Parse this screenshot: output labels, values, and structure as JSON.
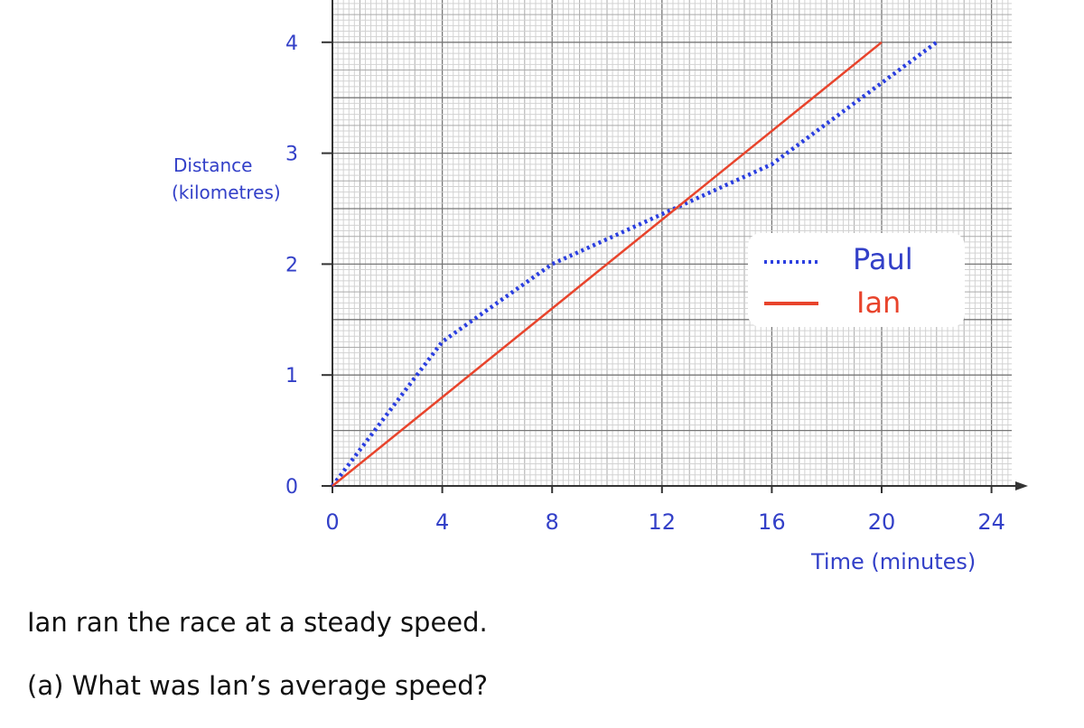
{
  "chart_data": {
    "type": "line",
    "xlabel": "Time (minutes)",
    "ylabel_line1": "Distance",
    "ylabel_line2": "(kilometres)",
    "xlim": [
      0,
      24
    ],
    "ylim": [
      0,
      4
    ],
    "x_ticks": [
      "0",
      "4",
      "8",
      "12",
      "16",
      "20",
      "24"
    ],
    "y_ticks": [
      "0",
      "1",
      "2",
      "3",
      "4"
    ],
    "grid": true,
    "legend_position": "right-middle",
    "series": [
      {
        "name": "Paul",
        "style": "dotted",
        "color": "#2b3fe0",
        "points": [
          [
            0,
            0
          ],
          [
            4,
            1.3
          ],
          [
            8,
            2
          ],
          [
            16,
            2.9
          ],
          [
            22,
            4
          ]
        ]
      },
      {
        "name": "Ian",
        "style": "solid",
        "color": "#e8442c",
        "points": [
          [
            0,
            0
          ],
          [
            20,
            4
          ]
        ]
      }
    ]
  },
  "question": {
    "statement": "Ian ran the race at a steady speed.",
    "part_a": "(a) What was Ian’s average speed?"
  }
}
